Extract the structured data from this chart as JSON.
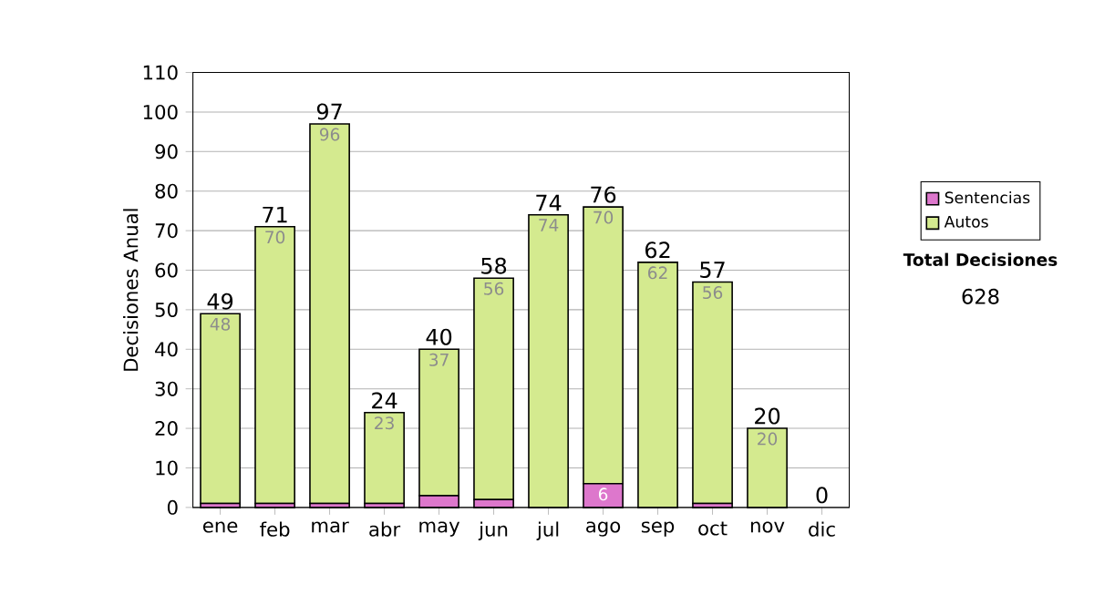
{
  "chart_data": {
    "type": "bar",
    "stacked": true,
    "ylabel": "Decisiones Anual",
    "categories": [
      "ene",
      "feb",
      "mar",
      "abr",
      "may",
      "jun",
      "jul",
      "ago",
      "sep",
      "oct",
      "nov",
      "dic"
    ],
    "series": [
      {
        "name": "Sentencias",
        "color": "#dd77cc",
        "values": [
          1,
          1,
          1,
          1,
          3,
          2,
          0,
          6,
          0,
          1,
          0,
          0
        ],
        "value_labels": [
          null,
          null,
          null,
          null,
          null,
          null,
          null,
          "6",
          null,
          null,
          null,
          null
        ]
      },
      {
        "name": "Autos",
        "color": "#d4ea8f",
        "values": [
          48,
          70,
          96,
          23,
          37,
          56,
          74,
          70,
          62,
          56,
          20,
          0
        ],
        "value_labels": [
          "48",
          "70",
          "96",
          "23",
          "37",
          "56",
          "74",
          "70",
          "62",
          "56",
          "20",
          null
        ]
      }
    ],
    "totals": [
      "49",
      "71",
      "97",
      "24",
      "40",
      "58",
      "74",
      "76",
      "62",
      "57",
      "20",
      "0"
    ],
    "ylim": [
      0,
      110
    ],
    "yticks": [
      0,
      10,
      20,
      30,
      40,
      50,
      60,
      70,
      80,
      90,
      100,
      110
    ],
    "grid": "y",
    "legend": "right",
    "annotations": [
      "Total Decisiones",
      "628"
    ]
  }
}
